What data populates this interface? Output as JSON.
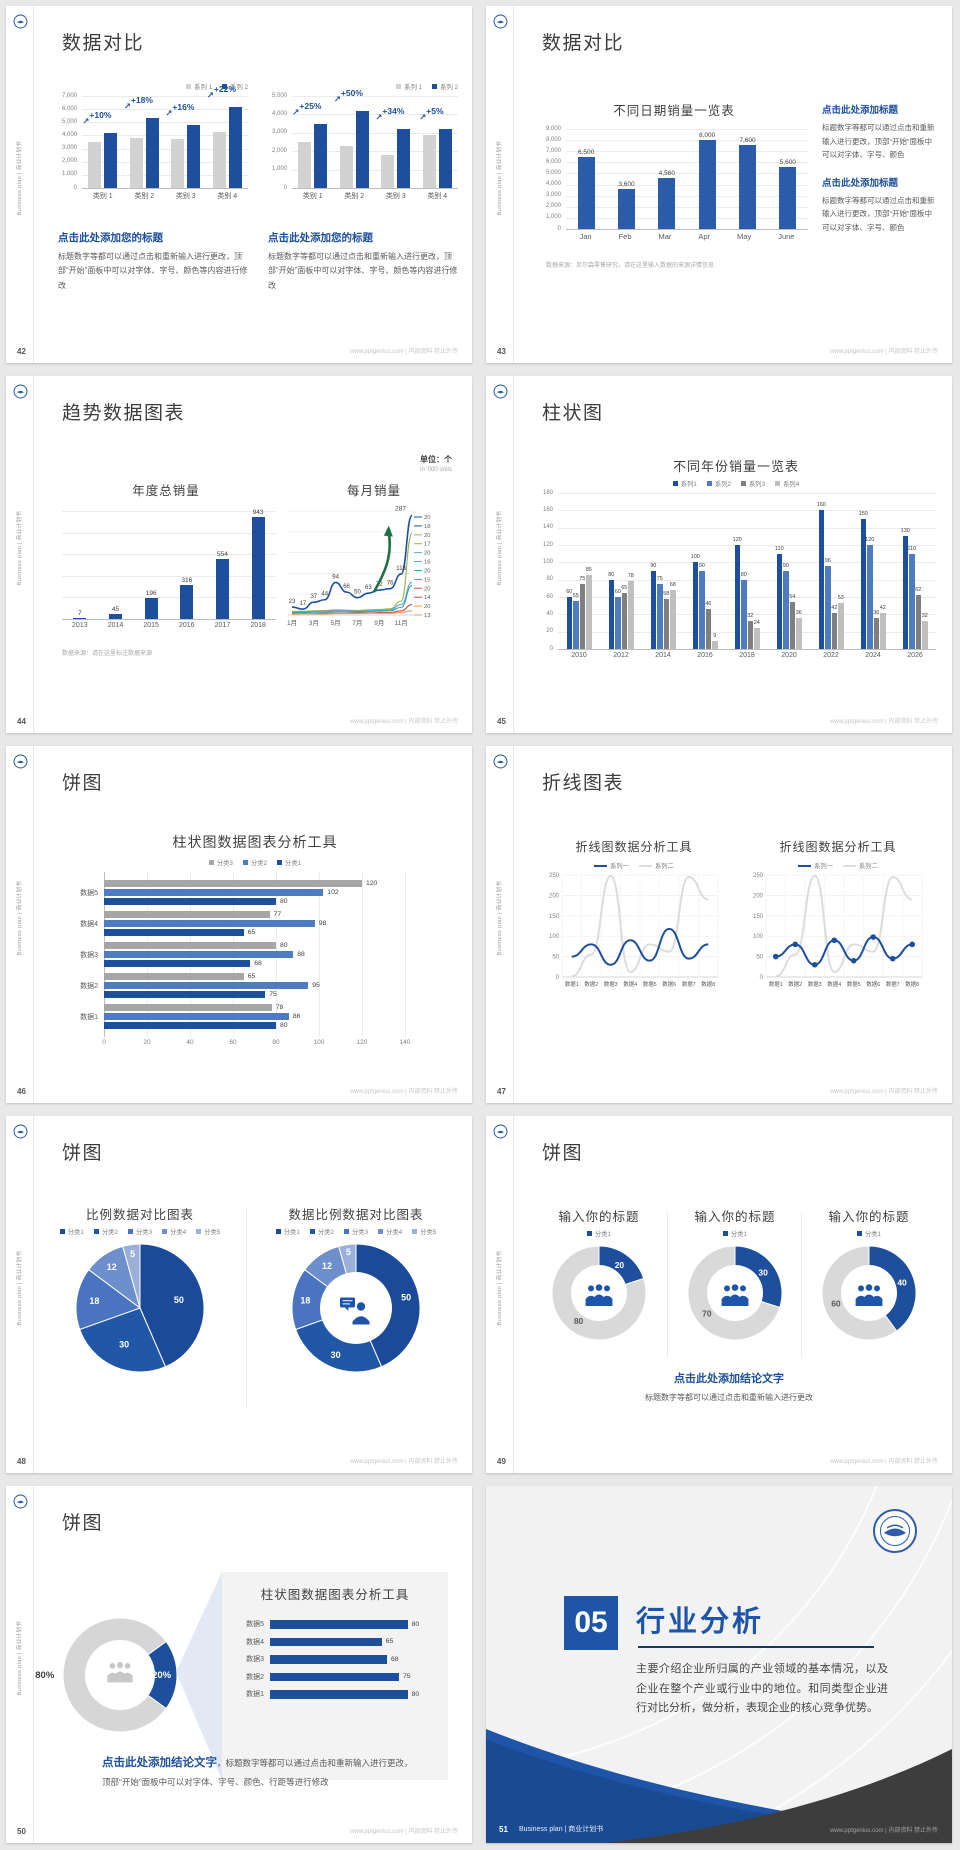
{
  "common": {
    "sidebar_text": "Business plan | 商业计划书",
    "footer": "www.pptgenius.com | 内部资料 禁止外传"
  },
  "slides": [
    {
      "number": "42",
      "title": "数据对比",
      "blocks": [
        {
          "heading": "点击此处添加您的标题",
          "body": "标题数字等都可以通过点击和重新输入进行更改，顶部“开始”面板中可以对字体、字号、颜色等内容进行修改"
        },
        {
          "heading": "点击此处添加您的标题",
          "body": "标题数字等都可以通过点击和重新输入进行更改，顶部“开始”面板中可以对字体、字号、颜色等内容进行修改"
        }
      ]
    },
    {
      "number": "43",
      "title": "数据对比",
      "source": "数据来源：尼尔森零售研究，请在这里输入数据的来源详情信息",
      "blocks": [
        {
          "heading": "点击此处添加标题",
          "body": "标题数字等都可以通过点击和重新输入进行更改，顶部“开始”面板中可以对字体、字号、颜色"
        },
        {
          "heading": "点击此处添加标题",
          "body": "标题数字等都可以通过点击和重新输入进行更改，顶部“开始”面板中可以对字体、字号、颜色"
        }
      ]
    },
    {
      "number": "44",
      "title": "趋势数据图表",
      "unit_cn": "单位：个",
      "unit_en": "in '000 units",
      "source": "数据来源：请在这里标注数据来源"
    },
    {
      "number": "45",
      "title": "柱状图"
    },
    {
      "number": "46",
      "title": "饼图"
    },
    {
      "number": "47",
      "title": "折线图表"
    },
    {
      "number": "48",
      "title": "饼图"
    },
    {
      "number": "49",
      "title": "饼图",
      "conclusion": "点击此处添加结论文字",
      "conclusion_body": "标题数字等都可以通过点击和重新输入进行更改"
    },
    {
      "number": "50",
      "title": "饼图",
      "conclusion": "点击此处添加结论文字",
      "conclusion_body": "，标题数字等都可以通过点击和重新输入进行更改，顶部“开始”面板中可以对字体、字号、颜色、行距等进行修改"
    },
    {
      "number": "51",
      "badge": "05",
      "title": "行业分析",
      "body": "主要介绍企业所归属的产业领域的基本情况，以及企业在整个产业或行业中的地位。和同类型企业进行对比分析，做分析，表现企业的核心竞争优势。",
      "footer_brand": "Business plan | 商业计划书"
    }
  ],
  "chart_data": [
    {
      "type": "column",
      "legend": [
        "系列 1",
        "系列 2"
      ],
      "categories": [
        "类别 1",
        "类别 2",
        "类别 3",
        "类别 4"
      ],
      "series": [
        {
          "name": "系列 1",
          "color": "#d2d2d2",
          "values": [
            3500,
            3800,
            3700,
            4300
          ]
        },
        {
          "name": "系列 2",
          "color": "#1d4f9c",
          "values": [
            4200,
            5300,
            4800,
            6200
          ]
        }
      ],
      "annotations": [
        "+10%",
        "+18%",
        "+16%",
        "+22%"
      ],
      "ylim": [
        0,
        7000
      ],
      "ystep": 1000
    },
    {
      "type": "column",
      "legend": [
        "系列 1",
        "系列 2"
      ],
      "categories": [
        "类别 1",
        "类别 2",
        "类别 3",
        "类别 4"
      ],
      "series": [
        {
          "name": "系列 1",
          "color": "#d2d2d2",
          "values": [
            2500,
            2300,
            1800,
            2900
          ]
        },
        {
          "name": "系列 2",
          "color": "#1d4f9c",
          "values": [
            3500,
            4200,
            3200,
            3200
          ]
        }
      ],
      "annotations": [
        "+25%",
        "+50%",
        "+34%",
        "+5%"
      ],
      "ylim": [
        0,
        5000
      ],
      "ystep": 1000
    },
    {
      "type": "column",
      "title": "不同日期销量一览表",
      "categories": [
        "Jan",
        "Feb",
        "Mar",
        "Apr",
        "May",
        "June"
      ],
      "series": [
        {
          "name": "销量",
          "color": "#2a5caa",
          "values": [
            6500,
            3600,
            4560,
            8000,
            7600,
            5600
          ]
        }
      ],
      "ylim": [
        0,
        9000
      ],
      "ystep": 1000,
      "value_labels": true
    },
    {
      "type": "column",
      "title": "年度总销量",
      "categories": [
        "2013",
        "2014",
        "2015",
        "2016",
        "2017",
        "2018"
      ],
      "series": [
        {
          "name": "年度总销量",
          "color": "#1d4f9c",
          "values": [
            7,
            45,
            196,
            316,
            554,
            943
          ]
        }
      ],
      "ylim": [
        0,
        1000
      ],
      "ystep": 200,
      "value_labels": true,
      "y_labels": false
    },
    {
      "type": "multiline",
      "title": "每月销量",
      "x_labels": [
        "1月",
        "3月",
        "5月",
        "7月",
        "9月",
        "11月"
      ],
      "ylim": [
        0,
        300
      ],
      "main_series": {
        "color": "#1d4f9c",
        "values": [
          23,
          17,
          37,
          44,
          94,
          66,
          50,
          63,
          72,
          76,
          118,
          287
        ]
      },
      "other_series": [
        {
          "color": "#94b64e",
          "values": [
            10,
            11,
            12,
            13,
            15,
            14,
            13,
            15,
            16,
            18,
            40,
            235
          ]
        },
        {
          "color": "#5ba3d9",
          "values": [
            8,
            9,
            10,
            11,
            12,
            12,
            11,
            12,
            13,
            15,
            30,
            95
          ]
        },
        {
          "color": "#35a5ac",
          "values": [
            6,
            7,
            8,
            8,
            9,
            9,
            9,
            10,
            11,
            12,
            22,
            85
          ]
        },
        {
          "color": "#c0504d",
          "values": [
            3,
            4,
            4,
            5,
            5,
            5,
            6,
            6,
            7,
            7,
            12,
            30
          ]
        },
        {
          "color": "#f79646",
          "values": [
            2,
            3,
            3,
            3,
            4,
            4,
            4,
            5,
            5,
            5,
            7,
            12
          ]
        }
      ],
      "end_labels": [
        20,
        18,
        20,
        17,
        20,
        16,
        20,
        15,
        20,
        14,
        20,
        13
      ],
      "annotation_icon": "green-up-arrow-icon"
    },
    {
      "type": "column",
      "title": "不同年份销量一览表",
      "legend": [
        "系列1",
        "系列2",
        "系列3",
        "系列4"
      ],
      "categories": [
        "2010",
        "2012",
        "2014",
        "2016",
        "2018",
        "2020",
        "2022",
        "2024",
        "2026"
      ],
      "series": [
        {
          "name": "系列1",
          "color": "#1d4f9c",
          "values": [
            60,
            80,
            90,
            100,
            120,
            110,
            160,
            150,
            130
          ]
        },
        {
          "name": "系列2",
          "color": "#4f7cc0",
          "values": [
            55,
            60,
            75,
            90,
            80,
            90,
            96,
            120,
            110
          ]
        },
        {
          "name": "系列3",
          "color": "#7f7f7f",
          "values": [
            75,
            65,
            58,
            46,
            32,
            54,
            42,
            36,
            62
          ]
        },
        {
          "name": "系列4",
          "color": "#bfbfbf",
          "values": [
            85,
            78,
            68,
            9,
            24,
            36,
            53,
            42,
            32
          ]
        }
      ],
      "ylim": [
        0,
        180
      ],
      "ystep": 20,
      "value_labels": true
    },
    {
      "type": "barh",
      "title": "柱状图数据图表分析工具",
      "legend": [
        "分类3",
        "分类2",
        "分类1"
      ],
      "colors": [
        "#a6a6a6",
        "#4f7cc0",
        "#1d4f9c"
      ],
      "rows": [
        {
          "label": "数据5",
          "values": [
            120,
            102,
            80
          ]
        },
        {
          "label": "数据4",
          "values": [
            77,
            98,
            65
          ]
        },
        {
          "label": "数据3",
          "values": [
            80,
            88,
            68
          ]
        },
        {
          "label": "数据2",
          "values": [
            65,
            95,
            75
          ]
        },
        {
          "label": "数据1",
          "values": [
            78,
            86,
            80
          ]
        }
      ],
      "xlim": [
        0,
        140
      ],
      "xstep": 20
    },
    {
      "type": "line",
      "title": "折线图数据分析工具",
      "legend": [
        "系列一",
        "系列二"
      ],
      "categories": [
        "数据1",
        "数据2",
        "数据3",
        "数据4",
        "数据5",
        "数据6",
        "数据7",
        "数据8"
      ],
      "series": [
        {
          "name": "系列一",
          "color": "#1d4f9c",
          "values": [
            50,
            80,
            30,
            90,
            40,
            118,
            45,
            80
          ]
        },
        {
          "name": "系列二",
          "color": "#dcdcdc",
          "values": [
            2,
            55,
            248,
            12,
            80,
            62,
            245,
            190
          ]
        }
      ],
      "ylim": [
        0,
        250
      ],
      "ystep": 50
    },
    {
      "type": "line",
      "title": "折线图数据分析工具",
      "legend": [
        "系列一",
        "系列二"
      ],
      "markers": true,
      "categories": [
        "数据1",
        "数据2",
        "数据3",
        "数据4",
        "数据5",
        "数据6",
        "数据7",
        "数据8"
      ],
      "series": [
        {
          "name": "系列一",
          "color": "#1d4f9c",
          "values": [
            50,
            80,
            30,
            90,
            40,
            98,
            45,
            80
          ]
        },
        {
          "name": "系列二",
          "color": "#dcdcdc",
          "values": [
            2,
            55,
            248,
            12,
            80,
            62,
            245,
            190
          ]
        }
      ],
      "ylim": [
        0,
        250
      ],
      "ystep": 50
    },
    {
      "type": "pie",
      "title": "比例数据对比图表",
      "legend": [
        "分类1",
        "分类2",
        "分类3",
        "分类4",
        "分类5"
      ],
      "values": [
        50,
        30,
        18,
        12,
        5
      ],
      "colors": [
        "#1b4a99",
        "#2057a7",
        "#4a74bf",
        "#6d8fcc",
        "#9bb0d9"
      ]
    },
    {
      "type": "donut",
      "title": "数据比例数据对比图表",
      "legend": [
        "分类1",
        "分类2",
        "分类3",
        "分类4",
        "分类5"
      ],
      "values": [
        50,
        30,
        18,
        12,
        5
      ],
      "colors": [
        "#1b4a99",
        "#2057a7",
        "#4a74bf",
        "#6d8fcc",
        "#9bb0d9"
      ],
      "icon": "person-chat-icon"
    },
    {
      "type": "donut",
      "title": "输入你的标题",
      "legend": [
        "分类1"
      ],
      "values": [
        20,
        80
      ],
      "colors": [
        "#1d4f9c",
        "#d9d9d9"
      ],
      "icon": "people-group-icon"
    },
    {
      "type": "donut",
      "title": "输入你的标题",
      "legend": [
        "分类1"
      ],
      "values": [
        30,
        70
      ],
      "colors": [
        "#1d4f9c",
        "#d9d9d9"
      ],
      "icon": "people-group-icon"
    },
    {
      "type": "donut",
      "title": "输入你的标题",
      "legend": [
        "分类1"
      ],
      "values": [
        40,
        60
      ],
      "colors": [
        "#1d4f9c",
        "#d9d9d9"
      ],
      "icon": "people-group-icon"
    },
    {
      "type": "donut",
      "values": [
        20,
        80
      ],
      "labels": [
        "20%",
        "80%"
      ],
      "colors": [
        "#1d4f9c",
        "#d6d6d6"
      ],
      "icon": "people-group-gray-icon",
      "start_deg": 54
    },
    {
      "type": "barh",
      "title": "柱状图数据图表分析工具",
      "colors": [
        "#1d4f9c"
      ],
      "rows": [
        {
          "label": "数据5",
          "values": [
            80
          ]
        },
        {
          "label": "数据4",
          "values": [
            65
          ]
        },
        {
          "label": "数据3",
          "values": [
            68
          ]
        },
        {
          "label": "数据2",
          "values": [
            75
          ]
        },
        {
          "label": "数据1",
          "values": [
            80
          ]
        }
      ],
      "xlim": [
        0,
        100
      ]
    }
  ]
}
